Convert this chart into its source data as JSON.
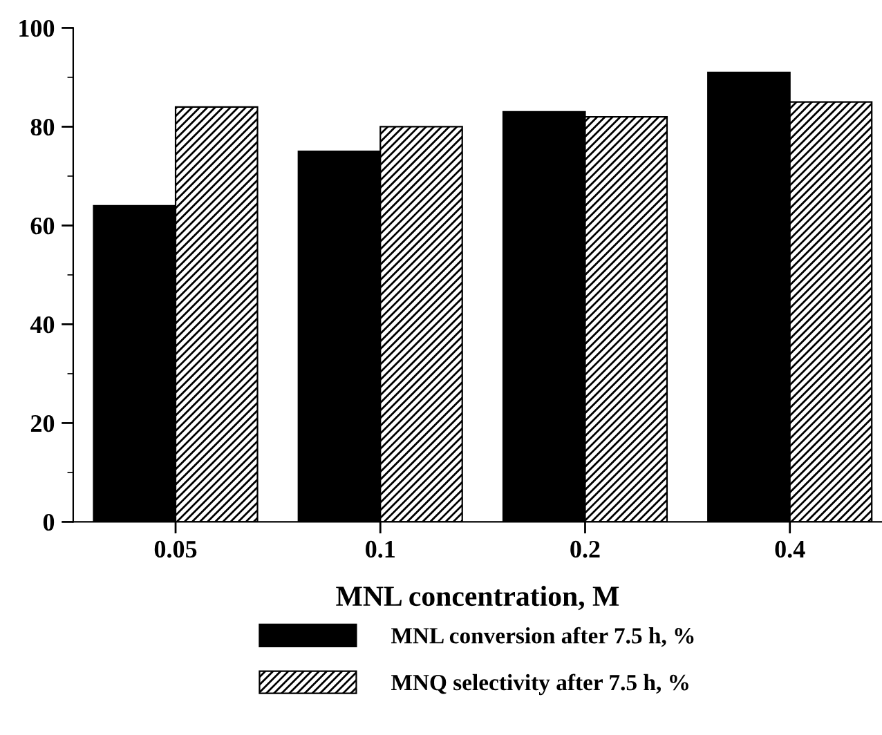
{
  "chart_data": {
    "type": "bar",
    "xlabel": "MNL concentration, M",
    "categories": [
      "0.05",
      "0.1",
      "0.2",
      "0.4"
    ],
    "series": [
      {
        "name": "MNL conversion after 7.5 h, %",
        "color": "#000000",
        "values": [
          64,
          75,
          83,
          91
        ]
      },
      {
        "name": "MNQ selectivity after 7.5 h, %",
        "color": "#000000",
        "values": [
          84,
          80,
          82,
          85
        ]
      }
    ],
    "ylim": [
      0,
      100
    ],
    "yticks": [
      0,
      20,
      40,
      60,
      80,
      100
    ],
    "grid": false,
    "legend": "bottom"
  }
}
